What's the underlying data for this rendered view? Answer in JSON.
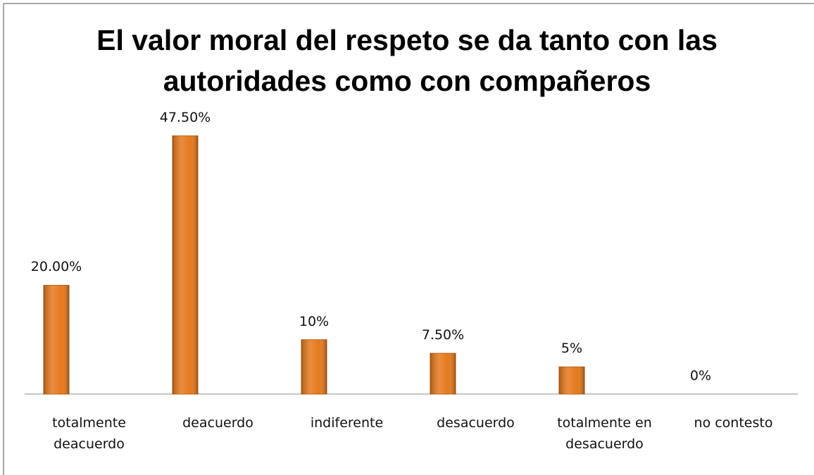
{
  "chart_data": {
    "type": "bar",
    "title": "El valor moral del respeto se da tanto con las autoridades como con compañeros",
    "categories": [
      "totalmente deacuerdo",
      "deacuerdo",
      "indiferente",
      "desacuerdo",
      "totalmente en desacuerdo",
      "no contesto"
    ],
    "values": [
      20,
      47.5,
      10,
      7.5,
      5,
      0
    ],
    "value_labels": [
      "20.00%",
      "47.50%",
      "10%",
      "7.50%",
      "5%",
      "0%"
    ],
    "color": "#e5791c"
  }
}
